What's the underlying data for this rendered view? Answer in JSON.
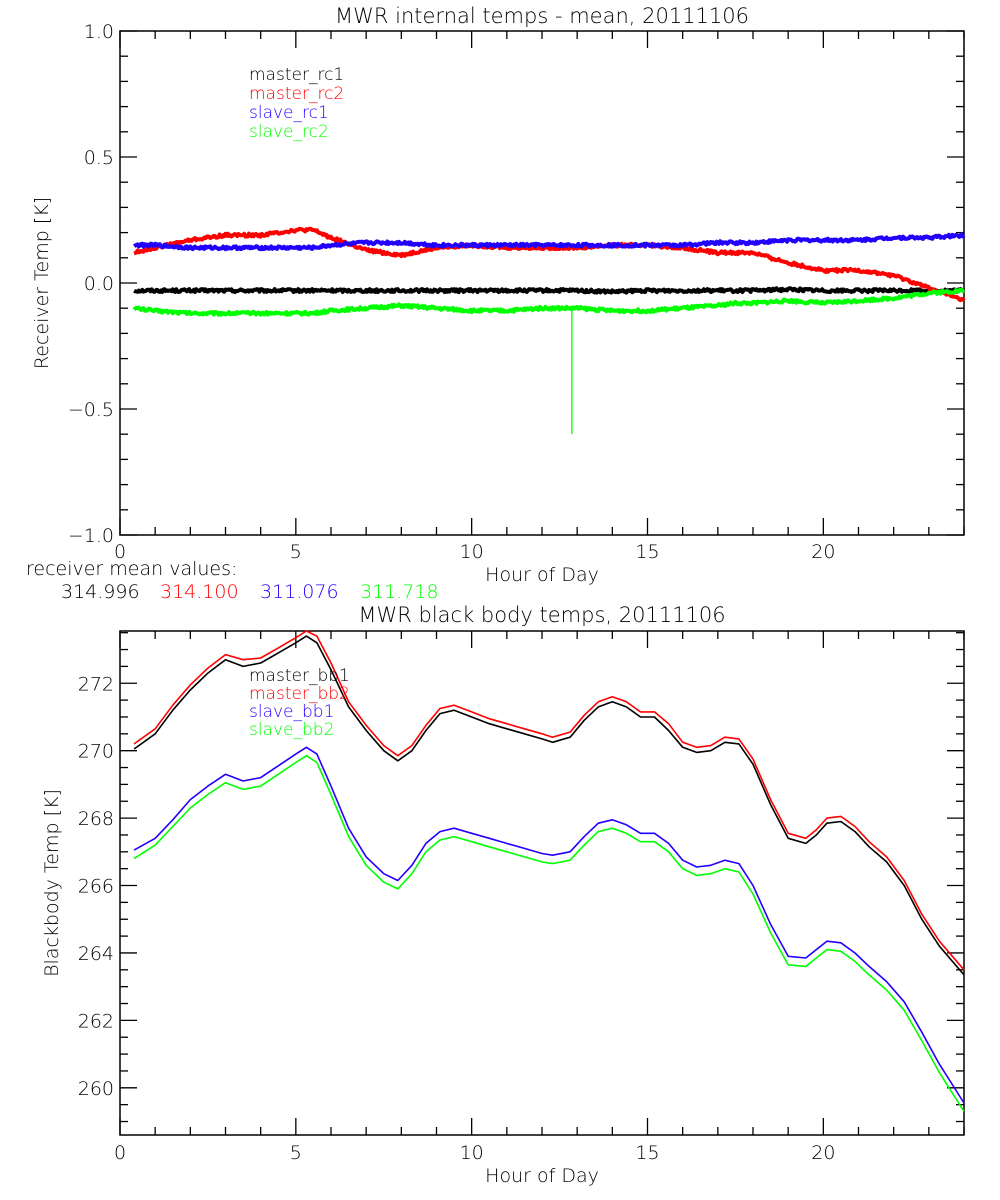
{
  "colors": {
    "black": "#000000",
    "red": "#ff0000",
    "blue": "#2200ff",
    "green": "#00ff00"
  },
  "receiver_mean": {
    "label": "receiver mean values:",
    "values": [
      {
        "text": "314.996",
        "color": "#000000"
      },
      {
        "text": "314.100",
        "color": "#ff0000"
      },
      {
        "text": "311.076",
        "color": "#2200ff"
      },
      {
        "text": "311.718",
        "color": "#00ff00"
      }
    ]
  },
  "chart_data": [
    {
      "type": "line",
      "title": "MWR internal temps - mean, 20111106",
      "xlabel": "Hour of Day",
      "ylabel": "Receiver Temp [K]",
      "xlim": [
        0,
        24
      ],
      "ylim": [
        -1.0,
        1.0
      ],
      "xticks": [
        0,
        5,
        10,
        15,
        20
      ],
      "xtick_labels": [
        "0",
        "5",
        "10",
        "15",
        "20"
      ],
      "yticks": [
        -1.0,
        -0.5,
        0.0,
        0.5,
        1.0
      ],
      "ytick_labels": [
        "-1.0",
        "-0.5",
        "0.0",
        "0.5",
        "1.0"
      ],
      "grid": false,
      "legend_position": "top-left",
      "x": [
        0.4,
        1,
        2,
        3,
        4,
        5,
        5.5,
        6,
        7,
        8,
        9,
        10,
        11,
        12,
        13,
        14,
        15,
        16,
        17,
        17.5,
        18,
        19,
        20,
        21,
        22,
        23,
        24
      ],
      "series": [
        {
          "name": "master_rc1",
          "color": "#000000",
          "values": [
            -0.03,
            -0.03,
            -0.03,
            -0.03,
            -0.03,
            -0.03,
            -0.03,
            -0.03,
            -0.03,
            -0.03,
            -0.03,
            -0.03,
            -0.03,
            -0.03,
            -0.03,
            -0.035,
            -0.03,
            -0.03,
            -0.03,
            -0.03,
            -0.03,
            -0.025,
            -0.03,
            -0.03,
            -0.03,
            -0.03,
            -0.03
          ]
        },
        {
          "name": "master_rc2",
          "color": "#ff0000",
          "values": [
            0.12,
            0.14,
            0.17,
            0.19,
            0.19,
            0.21,
            0.21,
            0.18,
            0.13,
            0.11,
            0.14,
            0.15,
            0.14,
            0.14,
            0.14,
            0.15,
            0.15,
            0.14,
            0.12,
            0.12,
            0.12,
            0.08,
            0.05,
            0.05,
            0.03,
            -0.02,
            -0.07
          ]
        },
        {
          "name": "slave_rc1",
          "color": "#2200ff",
          "values": [
            0.15,
            0.15,
            0.14,
            0.14,
            0.14,
            0.14,
            0.14,
            0.15,
            0.16,
            0.16,
            0.15,
            0.15,
            0.15,
            0.15,
            0.15,
            0.15,
            0.15,
            0.15,
            0.16,
            0.16,
            0.16,
            0.17,
            0.17,
            0.17,
            0.18,
            0.18,
            0.19
          ]
        },
        {
          "name": "slave_rc2",
          "color": "#00ff00",
          "values": [
            -0.1,
            -0.11,
            -0.12,
            -0.12,
            -0.12,
            -0.12,
            -0.12,
            -0.11,
            -0.1,
            -0.09,
            -0.1,
            -0.11,
            -0.11,
            -0.1,
            -0.1,
            -0.11,
            -0.11,
            -0.1,
            -0.09,
            -0.08,
            -0.08,
            -0.07,
            -0.08,
            -0.07,
            -0.06,
            -0.04,
            -0.03
          ]
        }
      ],
      "spike": {
        "series": "slave_rc2",
        "x": 12.85,
        "y_from": -0.1,
        "y_to": -0.6
      }
    },
    {
      "type": "line",
      "title": "MWR black body temps, 20111106",
      "xlabel": "Hour of Day",
      "ylabel": "Blackbody Temp [K]",
      "xlim": [
        0,
        24
      ],
      "ylim": [
        258.6,
        273.55
      ],
      "xticks": [
        0,
        5,
        10,
        15,
        20
      ],
      "xtick_labels": [
        "0",
        "5",
        "10",
        "15",
        "20"
      ],
      "yticks": [
        260,
        262,
        264,
        266,
        268,
        270,
        272
      ],
      "ytick_labels": [
        "260",
        "262",
        "264",
        "266",
        "268",
        "270",
        "272"
      ],
      "grid": false,
      "legend_position": "top-left",
      "x": [
        0.4,
        1,
        1.5,
        2,
        2.5,
        3,
        3.5,
        4,
        4.5,
        5,
        5.3,
        5.6,
        6,
        6.5,
        7,
        7.5,
        7.9,
        8.3,
        8.7,
        9.1,
        9.5,
        10,
        10.5,
        11,
        11.5,
        12,
        12.3,
        12.8,
        13.2,
        13.6,
        14,
        14.4,
        14.8,
        15.2,
        15.6,
        16,
        16.4,
        16.8,
        17.2,
        17.6,
        18,
        18.5,
        19,
        19.5,
        19.8,
        20.1,
        20.5,
        20.9,
        21.3,
        21.8,
        22.3,
        22.8,
        23.3,
        24
      ],
      "series": [
        {
          "name": "master_bb1",
          "color": "#000000",
          "values": [
            270.05,
            270.5,
            271.2,
            271.8,
            272.3,
            272.7,
            272.5,
            272.6,
            272.9,
            273.2,
            273.4,
            273.2,
            272.4,
            271.3,
            270.6,
            270.0,
            269.7,
            270.0,
            270.6,
            271.1,
            271.2,
            271.0,
            270.8,
            270.65,
            270.5,
            270.35,
            270.25,
            270.4,
            270.9,
            271.3,
            271.45,
            271.3,
            271.0,
            271.0,
            270.6,
            270.1,
            269.95,
            270.0,
            270.25,
            270.2,
            269.6,
            268.4,
            267.4,
            267.25,
            267.5,
            267.85,
            267.9,
            267.6,
            267.15,
            266.7,
            266.0,
            265.0,
            264.2,
            263.35
          ]
        },
        {
          "name": "master_bb2",
          "color": "#ff0000",
          "values": [
            270.2,
            270.65,
            271.35,
            271.95,
            272.45,
            272.85,
            272.7,
            272.75,
            273.05,
            273.35,
            273.55,
            273.4,
            272.6,
            271.45,
            270.75,
            270.15,
            269.85,
            270.15,
            270.75,
            271.25,
            271.35,
            271.15,
            270.95,
            270.8,
            270.65,
            270.5,
            270.4,
            270.55,
            271.05,
            271.45,
            271.6,
            271.45,
            271.15,
            271.15,
            270.8,
            270.25,
            270.1,
            270.15,
            270.4,
            270.35,
            269.75,
            268.55,
            267.55,
            267.4,
            267.65,
            268.0,
            268.05,
            267.75,
            267.3,
            266.85,
            266.15,
            265.15,
            264.35,
            263.5
          ]
        },
        {
          "name": "slave_bb1",
          "color": "#2200ff",
          "values": [
            267.05,
            267.4,
            267.95,
            268.55,
            268.95,
            269.3,
            269.1,
            269.2,
            269.55,
            269.9,
            270.1,
            269.9,
            268.95,
            267.7,
            266.85,
            266.35,
            266.15,
            266.6,
            267.25,
            267.6,
            267.7,
            267.55,
            267.4,
            267.25,
            267.1,
            266.95,
            266.9,
            267.0,
            267.45,
            267.85,
            267.95,
            267.8,
            267.55,
            267.55,
            267.25,
            266.75,
            266.55,
            266.6,
            266.75,
            266.65,
            266.0,
            264.85,
            263.9,
            263.85,
            264.1,
            264.35,
            264.3,
            264.0,
            263.6,
            263.15,
            262.55,
            261.65,
            260.7,
            259.55
          ]
        },
        {
          "name": "slave_bb2",
          "color": "#00ff00",
          "values": [
            266.8,
            267.2,
            267.75,
            268.3,
            268.7,
            269.05,
            268.85,
            268.95,
            269.3,
            269.65,
            269.85,
            269.65,
            268.7,
            267.45,
            266.6,
            266.1,
            265.9,
            266.35,
            267.0,
            267.35,
            267.45,
            267.3,
            267.15,
            267.0,
            266.85,
            266.7,
            266.65,
            266.75,
            267.2,
            267.6,
            267.7,
            267.55,
            267.3,
            267.3,
            267.0,
            266.5,
            266.3,
            266.35,
            266.5,
            266.4,
            265.75,
            264.6,
            263.65,
            263.6,
            263.85,
            264.1,
            264.05,
            263.75,
            263.35,
            262.9,
            262.3,
            261.4,
            260.45,
            259.3
          ]
        }
      ]
    }
  ]
}
